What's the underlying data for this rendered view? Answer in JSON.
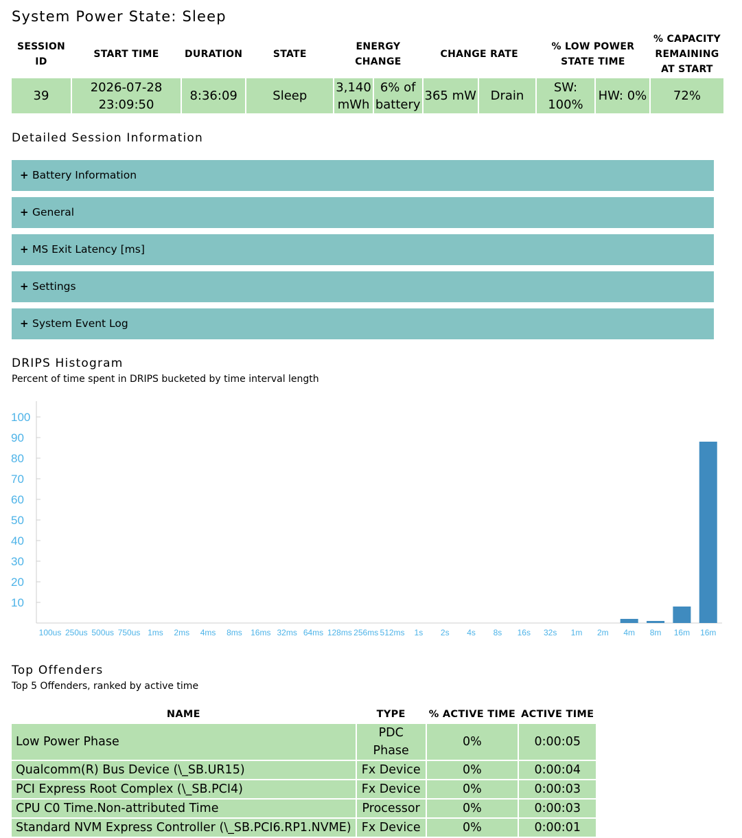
{
  "page_title": "System Power State: Sleep",
  "summary": {
    "headers": {
      "session_id": "SESSION ID",
      "start_time": "START TIME",
      "duration": "DURATION",
      "state": "STATE",
      "energy_change": "ENERGY CHANGE",
      "change_rate": "CHANGE RATE",
      "low_power": "% LOW POWER STATE TIME",
      "capacity": "% CAPACITY REMAINING AT START"
    },
    "row": {
      "session_id": "39",
      "start_time": "2026-07-28 23:09:50",
      "duration": "8:36:09",
      "state": "Sleep",
      "energy_mwh": "3,140 mWh",
      "energy_pct": "6% of battery",
      "rate": "365 mW",
      "direction": "Drain",
      "sw": "SW: 100%",
      "hw": "HW: 0%",
      "capacity": "72%"
    }
  },
  "detail_heading": "Detailed Session Information",
  "sections": [
    {
      "label": "Battery Information",
      "icon": "+"
    },
    {
      "label": "General",
      "icon": "+"
    },
    {
      "label": "MS Exit Latency [ms]",
      "icon": "+"
    },
    {
      "label": "Settings",
      "icon": "+"
    },
    {
      "label": "System Event Log",
      "icon": "+"
    }
  ],
  "histogram": {
    "title": "DRIPS Histogram",
    "subtitle": "Percent of time spent in DRIPS bucketed by time interval length"
  },
  "chart_data": {
    "type": "bar",
    "categories": [
      "100us",
      "250us",
      "500us",
      "750us",
      "1ms",
      "2ms",
      "4ms",
      "8ms",
      "16ms",
      "32ms",
      "64ms",
      "128ms",
      "256ms",
      "512ms",
      "1s",
      "2s",
      "4s",
      "8s",
      "16s",
      "32s",
      "1m",
      "2m",
      "4m",
      "8m",
      "16m",
      "16m"
    ],
    "values": [
      0,
      0,
      0,
      0,
      0,
      0,
      0,
      0,
      0,
      0,
      0,
      0,
      0,
      0,
      0,
      0,
      0,
      0,
      0,
      0,
      0,
      0,
      2,
      1,
      8,
      88
    ],
    "yticks": [
      10,
      20,
      30,
      40,
      50,
      60,
      70,
      80,
      90,
      100
    ],
    "ylim": [
      0,
      100
    ],
    "bar_color": "#3f8bbf",
    "label_color": "#4db3e8"
  },
  "offenders": {
    "title": "Top Offenders",
    "subtitle": "Top 5 Offenders, ranked by active time",
    "headers": [
      "NAME",
      "TYPE",
      "% ACTIVE TIME",
      "ACTIVE TIME"
    ],
    "rows": [
      [
        "Low Power Phase",
        "PDC Phase",
        "0%",
        "0:00:05"
      ],
      [
        "Qualcomm(R) Bus Device (\\_SB.UR15)",
        "Fx Device",
        "0%",
        "0:00:04"
      ],
      [
        "PCI Express Root Complex (\\_SB.PCI4)",
        "Fx Device",
        "0%",
        "0:00:03"
      ],
      [
        "CPU C0 Time.Non-attributed Time",
        "Processor",
        "0%",
        "0:00:03"
      ],
      [
        "Standard NVM Express Controller (\\_SB.PCI6.RP1.NVME)",
        "Fx Device",
        "0%",
        "0:00:01"
      ]
    ]
  }
}
